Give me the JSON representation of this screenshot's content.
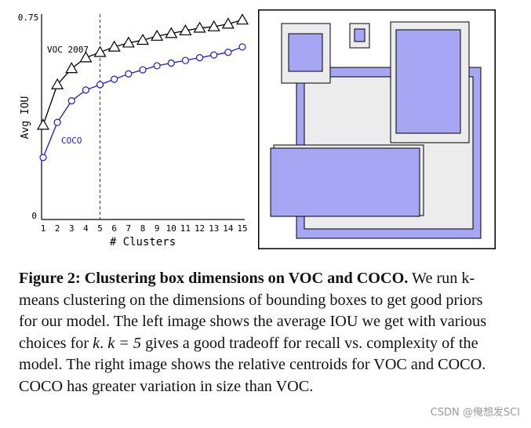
{
  "chart_data": {
    "type": "line",
    "xlabel": "# Clusters",
    "ylabel": "Avg IOU",
    "x": [
      1,
      2,
      3,
      4,
      5,
      6,
      7,
      8,
      9,
      10,
      11,
      12,
      13,
      14,
      15
    ],
    "xlim": [
      1,
      15
    ],
    "ylim": [
      0,
      0.75
    ],
    "y_tick_labels": [
      "0",
      "0.75"
    ],
    "x_tick_labels": [
      "1",
      "2",
      "3",
      "4",
      "5",
      "6",
      "7",
      "8",
      "9",
      "10",
      "11",
      "12",
      "13",
      "14",
      "15"
    ],
    "vline_x": 5,
    "series": [
      {
        "name": "VOC 2007",
        "marker": "triangle",
        "color": "#000000",
        "values": [
          0.35,
          0.5,
          0.56,
          0.6,
          0.62,
          0.64,
          0.655,
          0.665,
          0.68,
          0.69,
          0.7,
          0.71,
          0.715,
          0.725,
          0.74
        ]
      },
      {
        "name": "COCO",
        "marker": "circle",
        "color": "#1a1ad0",
        "values": [
          0.23,
          0.36,
          0.44,
          0.48,
          0.5,
          0.52,
          0.54,
          0.555,
          0.57,
          0.58,
          0.59,
          0.6,
          0.61,
          0.62,
          0.64
        ]
      }
    ]
  },
  "caption": {
    "fig_label": "Figure 2:",
    "title": "Clustering box dimensions on VOC and COCO.",
    "text_1": " We run k-means clustering on the dimensions of bounding boxes to get good priors for our model. The left image shows the average IOU we get with various choices for ",
    "k1": "k",
    "text_2": ". ",
    "k_eq": "k = 5",
    "text_3": " gives a good tradeoff for recall vs. complexity of the model. The right image shows the relative centroids for VOC and COCO. COCO has greater variation in size than VOC."
  },
  "watermark": "CSDN @俺想发SCI",
  "colors": {
    "coco_fill": "#a6a6f5",
    "voc_fill": "#ececec"
  }
}
